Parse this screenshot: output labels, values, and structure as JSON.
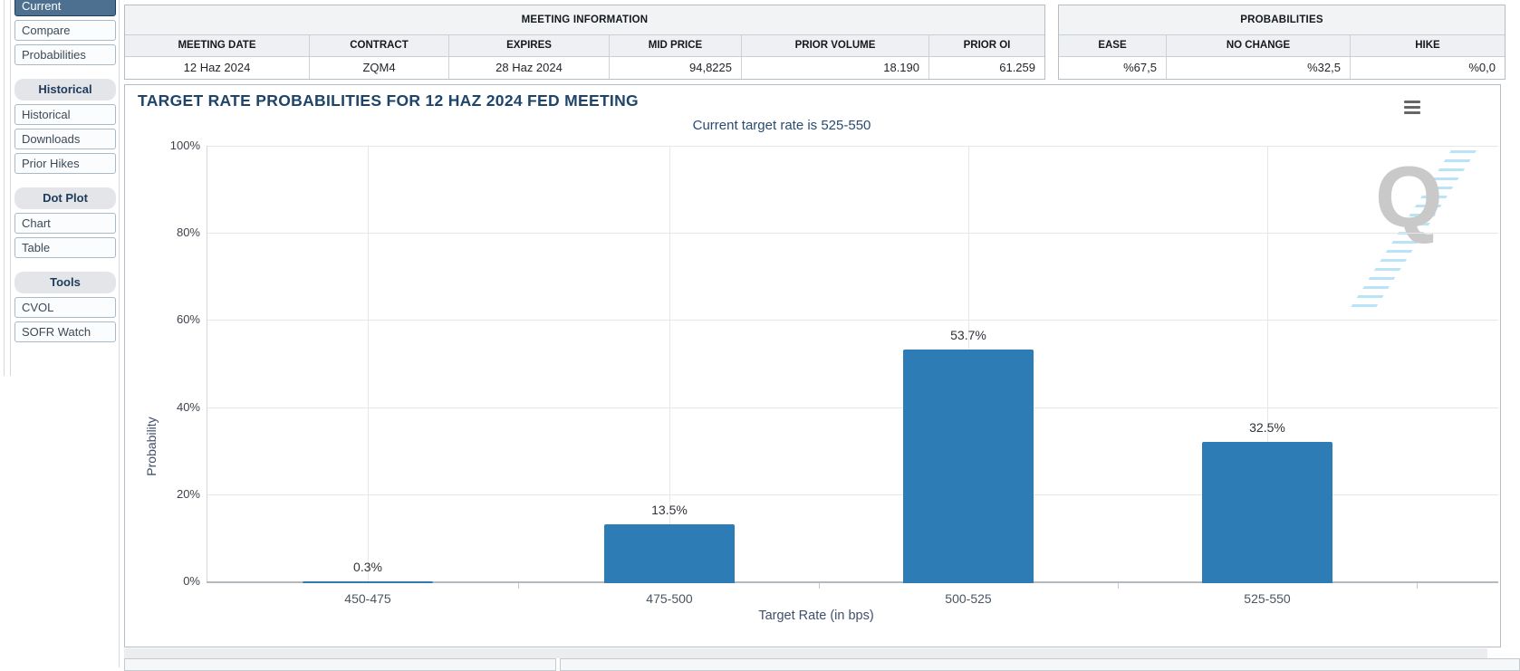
{
  "sidebar": {
    "selected": "Current",
    "sections": [
      {
        "header": null,
        "items": [
          "Current",
          "Compare",
          "Probabilities"
        ]
      },
      {
        "header": "Historical",
        "items": [
          "Historical",
          "Downloads",
          "Prior Hikes"
        ]
      },
      {
        "header": "Dot Plot",
        "items": [
          "Chart",
          "Table"
        ]
      },
      {
        "header": "Tools",
        "items": [
          "CVOL",
          "SOFR Watch"
        ]
      }
    ]
  },
  "meeting_info": {
    "title": "MEETING INFORMATION",
    "columns": [
      "MEETING DATE",
      "CONTRACT",
      "EXPIRES",
      "MID PRICE",
      "PRIOR VOLUME",
      "PRIOR OI"
    ],
    "values": [
      "12 Haz 2024",
      "ZQM4",
      "28 Haz 2024",
      "94,8225",
      "18.190",
      "61.259"
    ]
  },
  "probabilities": {
    "title": "PROBABILITIES",
    "columns": [
      "EASE",
      "NO CHANGE",
      "HIKE"
    ],
    "values": [
      "%67,5",
      "%32,5",
      "%0,0"
    ]
  },
  "chart_data": {
    "type": "bar",
    "title": "TARGET RATE PROBABILITIES FOR 12 HAZ 2024 FED MEETING",
    "subtitle": "Current target rate is 525-550",
    "categories": [
      "450-475",
      "475-500",
      "500-525",
      "525-550"
    ],
    "values": [
      0.3,
      13.5,
      53.7,
      32.5
    ],
    "labels": [
      "0.3%",
      "13.5%",
      "53.7%",
      "32.5%"
    ],
    "xlabel": "Target Rate (in bps)",
    "ylabel": "Probability",
    "ylim": [
      0,
      100
    ],
    "yticks": [
      "0%",
      "20%",
      "40%",
      "60%",
      "80%",
      "100%"
    ],
    "grid": true,
    "legend": "none",
    "bar_color": "#2d7cb5",
    "watermark_letter": "Q"
  },
  "theme": {
    "accent_navy": "#1e4569",
    "sidebar_selected": "#4d6f90",
    "bar_color": "#2d7cb5"
  }
}
